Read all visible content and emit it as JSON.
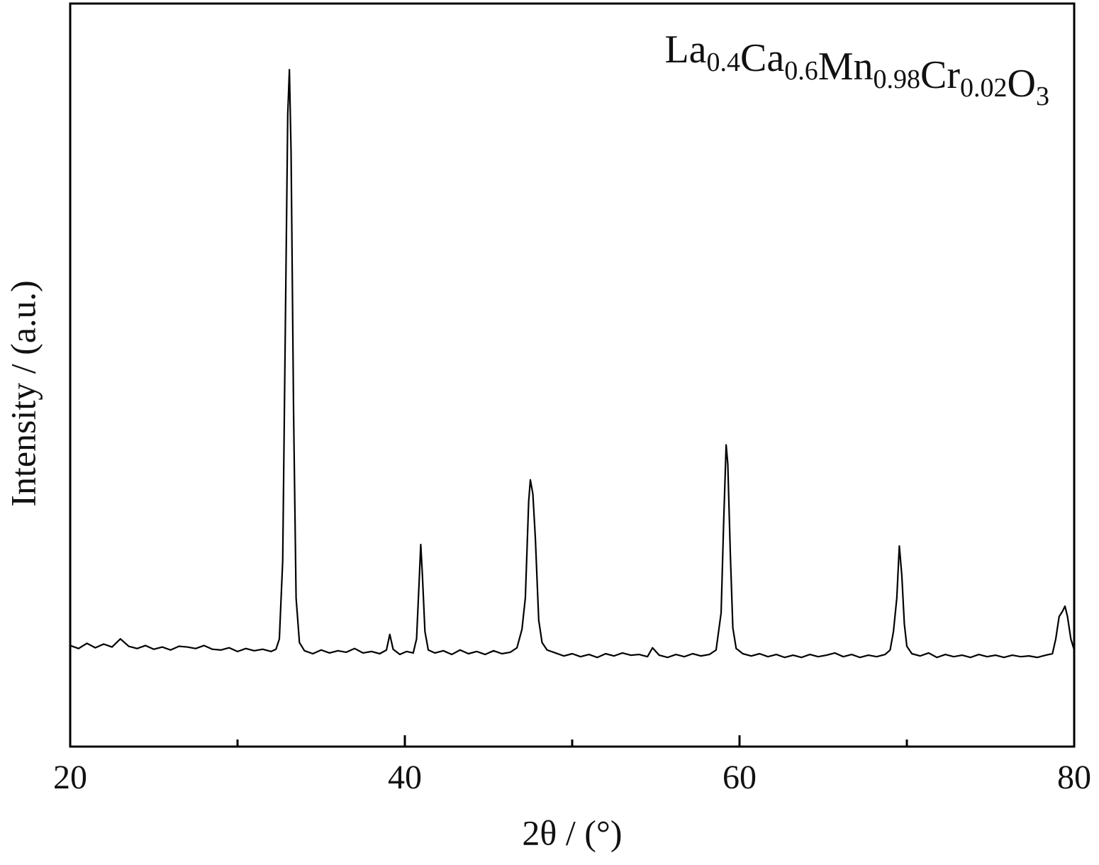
{
  "chart_data": {
    "type": "line",
    "title": [
      {
        "text": "La",
        "sub": "0.4"
      },
      {
        "text": "Ca",
        "sub": "0.6"
      },
      {
        "text": "Mn",
        "sub": "0.98"
      },
      {
        "text": "Cr",
        "sub": "0.02"
      },
      {
        "text": "O",
        "sub": "3"
      }
    ],
    "xlabel": "2θ / (°)",
    "ylabel": "Intensity / (a.u.)",
    "xlim": [
      20,
      80
    ],
    "ylim": [
      0,
      100
    ],
    "xticks": [
      20,
      40,
      60,
      80
    ],
    "xminor": [
      30,
      50,
      70
    ],
    "x": [
      20.0,
      20.5,
      21.0,
      21.5,
      22.0,
      22.5,
      23.0,
      23.5,
      24.0,
      24.5,
      25.0,
      25.5,
      26.0,
      26.5,
      27.0,
      27.5,
      28.0,
      28.5,
      29.0,
      29.5,
      30.0,
      30.5,
      31.0,
      31.5,
      32.0,
      32.3,
      32.5,
      32.7,
      32.85,
      33.0,
      33.1,
      33.2,
      33.35,
      33.5,
      33.7,
      34.0,
      34.5,
      35.0,
      35.5,
      36.0,
      36.5,
      37.0,
      37.5,
      38.0,
      38.5,
      38.9,
      39.1,
      39.3,
      39.7,
      40.1,
      40.5,
      40.7,
      40.85,
      40.95,
      41.05,
      41.2,
      41.4,
      41.8,
      42.3,
      42.8,
      43.3,
      43.8,
      44.3,
      44.8,
      45.3,
      45.8,
      46.3,
      46.7,
      47.0,
      47.2,
      47.4,
      47.5,
      47.65,
      47.8,
      48.0,
      48.2,
      48.5,
      49.0,
      49.5,
      50.0,
      50.5,
      51.0,
      51.5,
      52.0,
      52.5,
      53.0,
      53.5,
      54.0,
      54.5,
      54.8,
      55.2,
      55.7,
      56.2,
      56.7,
      57.2,
      57.7,
      58.2,
      58.6,
      58.9,
      59.05,
      59.2,
      59.3,
      59.45,
      59.6,
      59.8,
      60.2,
      60.7,
      61.2,
      61.7,
      62.2,
      62.7,
      63.2,
      63.7,
      64.2,
      64.7,
      65.2,
      65.7,
      66.2,
      66.7,
      67.2,
      67.7,
      68.2,
      68.7,
      69.0,
      69.2,
      69.4,
      69.55,
      69.7,
      69.85,
      70.0,
      70.3,
      70.8,
      71.3,
      71.8,
      72.3,
      72.8,
      73.3,
      73.8,
      74.3,
      74.8,
      75.3,
      75.8,
      76.3,
      76.8,
      77.3,
      77.8,
      78.3,
      78.7,
      78.9,
      79.1,
      79.3,
      79.45,
      79.6,
      79.8,
      80.0
    ],
    "series": [
      {
        "color": "#000000",
        "values": [
          13.6,
          13.2,
          13.9,
          13.3,
          13.8,
          13.4,
          14.5,
          13.5,
          13.2,
          13.6,
          13.1,
          13.4,
          13.0,
          13.5,
          13.4,
          13.2,
          13.6,
          13.1,
          13.0,
          13.3,
          12.8,
          13.2,
          12.9,
          13.1,
          12.8,
          13.1,
          14.5,
          25.0,
          55.0,
          85.0,
          91.1,
          80.0,
          45.0,
          20.0,
          14.0,
          12.9,
          12.5,
          13.0,
          12.6,
          12.9,
          12.7,
          13.2,
          12.6,
          12.8,
          12.5,
          13.0,
          15.1,
          13.1,
          12.4,
          12.8,
          12.6,
          14.5,
          22.0,
          27.2,
          23.0,
          15.5,
          13.0,
          12.6,
          12.9,
          12.4,
          13.0,
          12.5,
          12.8,
          12.4,
          12.9,
          12.5,
          12.7,
          13.3,
          15.8,
          20.0,
          33.0,
          35.9,
          34.0,
          28.0,
          17.0,
          14.0,
          13.0,
          12.6,
          12.2,
          12.5,
          12.1,
          12.4,
          12.0,
          12.5,
          12.2,
          12.6,
          12.3,
          12.4,
          12.1,
          13.3,
          12.3,
          12.0,
          12.4,
          12.1,
          12.5,
          12.2,
          12.4,
          13.0,
          18.0,
          30.0,
          40.6,
          38.0,
          26.0,
          16.0,
          13.2,
          12.5,
          12.2,
          12.5,
          12.1,
          12.4,
          12.0,
          12.3,
          12.0,
          12.4,
          12.1,
          12.3,
          12.6,
          12.1,
          12.4,
          12.0,
          12.3,
          12.1,
          12.4,
          13.0,
          15.5,
          20.0,
          27.0,
          23.0,
          16.5,
          13.5,
          12.5,
          12.2,
          12.6,
          12.0,
          12.4,
          12.1,
          12.3,
          12.0,
          12.4,
          12.1,
          12.3,
          12.0,
          12.3,
          12.1,
          12.2,
          12.0,
          12.3,
          12.5,
          14.5,
          17.5,
          18.2,
          18.9,
          17.5,
          14.5,
          13.0
        ]
      }
    ]
  }
}
